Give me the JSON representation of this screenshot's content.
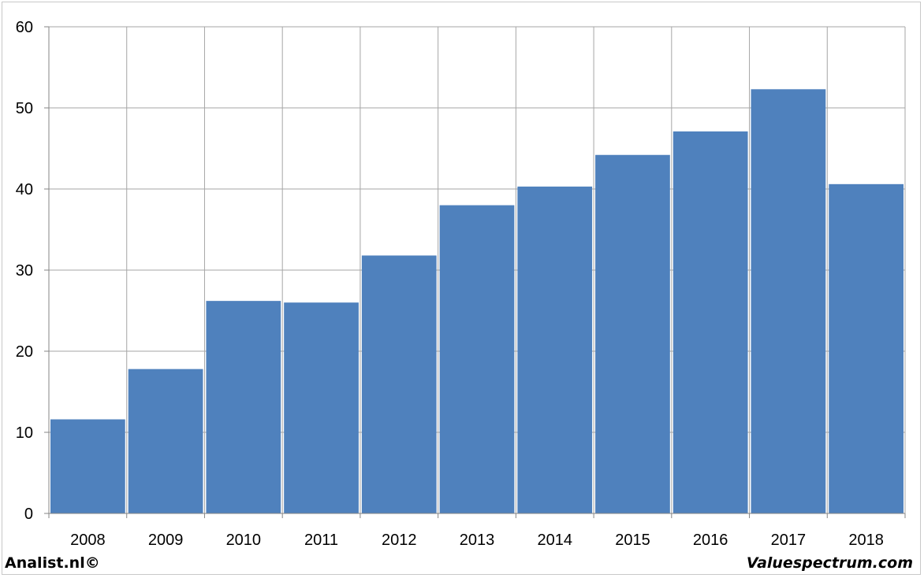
{
  "chart_data": {
    "type": "bar",
    "categories": [
      "2008",
      "2009",
      "2010",
      "2011",
      "2012",
      "2013",
      "2014",
      "2015",
      "2016",
      "2017",
      "2018"
    ],
    "values": [
      11.6,
      17.8,
      26.2,
      26.0,
      31.8,
      38.0,
      40.3,
      44.2,
      47.1,
      52.3,
      40.6
    ],
    "ylim": [
      0,
      60
    ],
    "yticks": [
      0,
      10,
      20,
      30,
      40,
      50,
      60
    ],
    "grid": true,
    "bar_color": "#4f81bd",
    "title": "",
    "xlabel": "",
    "ylabel": ""
  },
  "footer": {
    "left_text": "Analist.nl©",
    "right_text": "Valuespectrum.com"
  }
}
